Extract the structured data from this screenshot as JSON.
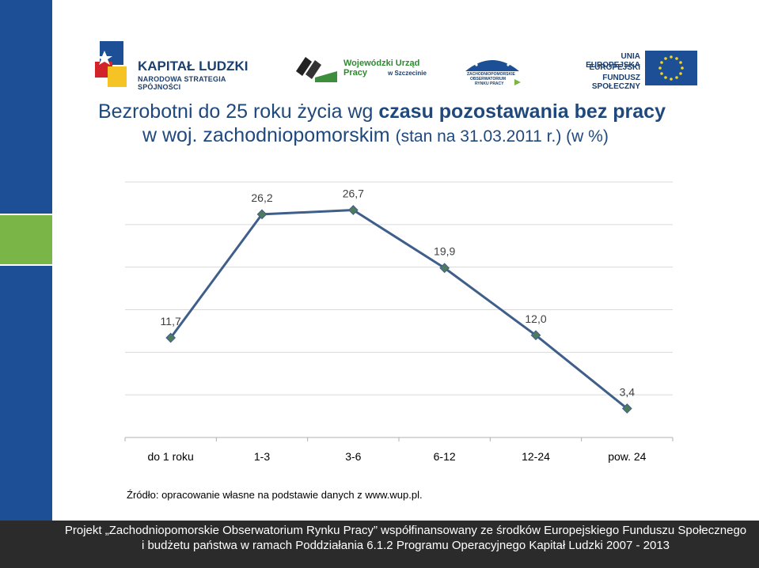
{
  "header": {
    "logos": [
      {
        "name": "kapital-ludzki",
        "line1": "KAPITAŁ LUDZKI",
        "line2": "NARODOWA STRATEGIA SPÓJNOŚCI"
      },
      {
        "name": "wup-szczecin",
        "line1": "Wojewódzki Urząd Pracy",
        "line2": "w Szczecinie"
      },
      {
        "name": "obserwatorium",
        "line1": "ZACHODNIOPOMORSKIE",
        "line2": "OBSERWATORIUM",
        "line3": "RYNKU PRACY"
      },
      {
        "name": "ue-efs",
        "line1": "UNIA EUROPEJSKA",
        "line2": "EUROPEJSKI",
        "line3": "FUNDUSZ SPOŁECZNY"
      }
    ]
  },
  "title": {
    "part1": "Bezrobotni do 25 roku życia wg ",
    "part1_bold": "czasu pozostawania bez pracy",
    "part2": "w woj. zachodniopomorskim ",
    "part2_small": "(stan na 31.03.2011 r.) (w %)"
  },
  "chart_data": {
    "type": "line",
    "categories": [
      "do 1 roku",
      "1-3",
      "3-6",
      "6-12",
      "12-24",
      "pow. 24"
    ],
    "series": [
      {
        "values": [
          11.7,
          26.2,
          26.7,
          19.9,
          12.0,
          3.4
        ],
        "labels": [
          "11,7",
          "26,2",
          "26,7",
          "19,9",
          "12,0",
          "3,4"
        ],
        "color": "#3e5f8a",
        "marker_color": "#4f7a5f"
      }
    ],
    "ylim": [
      0,
      30
    ],
    "grid": true
  },
  "source": "Źródło: opracowanie własne na podstawie danych z www.wup.pl.",
  "footer": {
    "line1": "Projekt „Zachodniopomorskie Obserwatorium Rynku Pracy” współfinansowany ze środków Europejskiego Funduszu Społecznego",
    "line2": "i budżetu państwa w ramach Poddziałania 6.1.2 Programu Operacyjnego Kapitał Ludzki 2007 - 2013"
  },
  "colors": {
    "title": "#1f497d",
    "sidebar_blue": "#1c4f96",
    "sidebar_green": "#79b547",
    "line": "#3e5f8a",
    "footer_bg": "#2b2b2b"
  }
}
